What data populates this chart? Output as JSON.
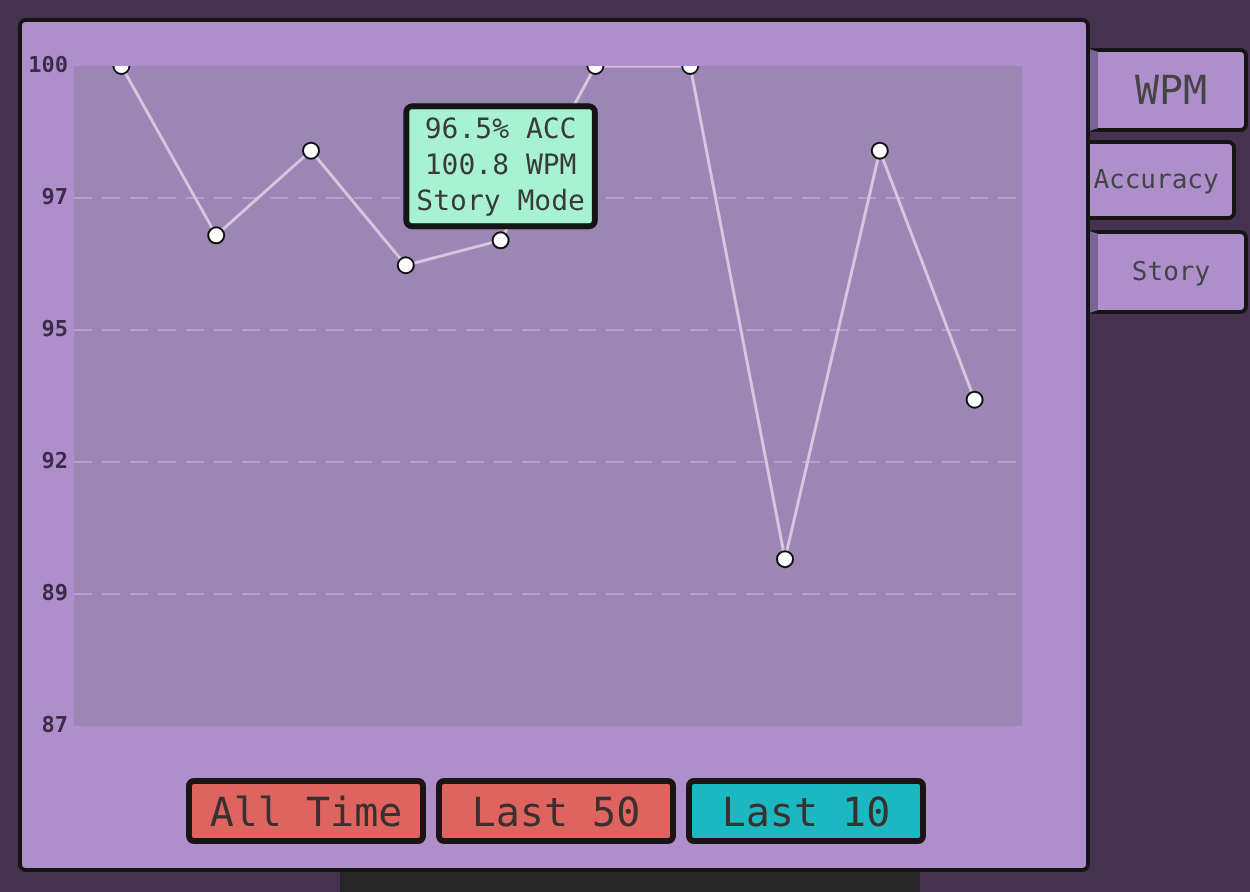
{
  "chart_data": {
    "type": "line",
    "categories": [
      null,
      null,
      null,
      null,
      null,
      null,
      null,
      null,
      null,
      null
    ],
    "series": [
      {
        "color": "#d8c6dc",
        "values": [
          100,
          96.6,
          98.3,
          96,
          96.5,
          100,
          100,
          90.1,
          98.3,
          93.3
        ]
      }
    ],
    "ylim": [
      86.75,
      100
    ],
    "yticks": [
      {
        "value": 86.75,
        "label": "87"
      },
      {
        "value": 89.4,
        "label": "89"
      },
      {
        "value": 92.05,
        "label": "92"
      },
      {
        "value": 94.7,
        "label": "95"
      },
      {
        "value": 97.35,
        "label": "97"
      },
      100
    ],
    "grid": "y",
    "legend": false,
    "marker": "circle",
    "line_style": "solid",
    "annotations": [
      {
        "text": "96.5% ACC\n100.8 WPM\nStory Mode",
        "y": 96.5
      },
      "WPM",
      "Accuracy",
      "Story",
      "All Time",
      "Last 50",
      "Last 10"
    ]
  }
}
